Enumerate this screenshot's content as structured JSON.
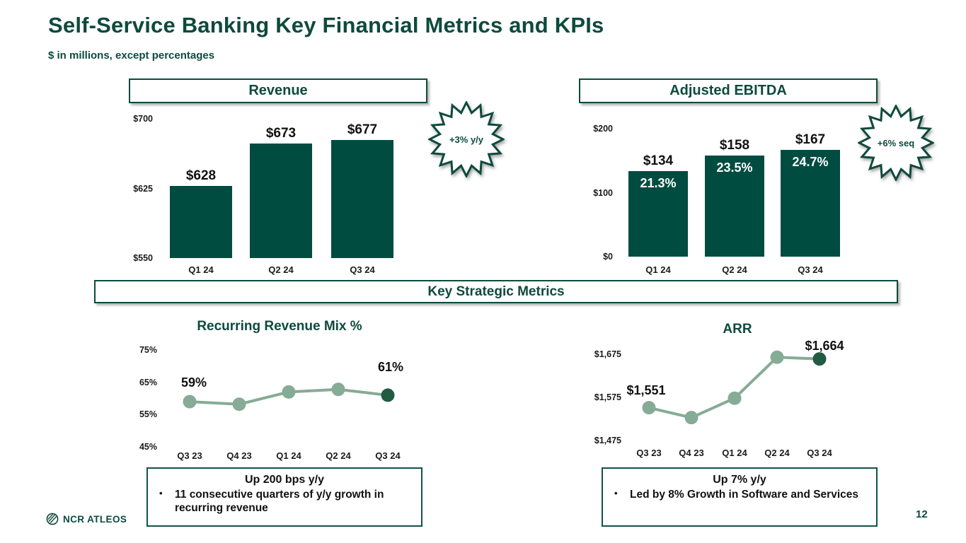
{
  "slide": {
    "title": "Self-Service Banking Key Financial Metrics and KPIs",
    "subtitle": "$ in millions, except percentages",
    "section_header": "Key Strategic Metrics",
    "page_number": "12",
    "logo_text": "NCR ATLEOS"
  },
  "colors": {
    "dark_green": "#0e4a3c",
    "bar_fill": "#014c40",
    "line_sage": "#86ab96",
    "last_marker": "#215c42",
    "text_black": "#111111",
    "white": "#ffffff"
  },
  "callouts": {
    "recurring": {
      "heading": "Up 200 bps y/y",
      "bullet": "11 consecutive quarters of y/y growth in recurring revenue"
    },
    "arr": {
      "heading": "Up 7% y/y",
      "bullet": "Led by 8% Growth in Software and Services"
    }
  },
  "chart_data": [
    {
      "id": "revenue",
      "type": "bar",
      "title": "Revenue",
      "badge": "+3% y/y",
      "categories": [
        "Q1 24",
        "Q2 24",
        "Q3 24"
      ],
      "values": [
        628,
        673,
        677
      ],
      "bar_labels": [
        "$628",
        "$673",
        "$677"
      ],
      "y_ticks": [
        "$700",
        "$625",
        "$550"
      ],
      "y_tick_values": [
        700,
        625,
        550
      ],
      "ylim": [
        550,
        700
      ],
      "grid": false,
      "ylabel": "",
      "xlabel": ""
    },
    {
      "id": "adjusted_ebitda",
      "type": "bar",
      "title": "Adjusted EBITDA",
      "badge": "+6% seq",
      "categories": [
        "Q1 24",
        "Q2 24",
        "Q3 24"
      ],
      "values": [
        134,
        158,
        167
      ],
      "bar_labels": [
        "$134",
        "$158",
        "$167"
      ],
      "inner_labels": [
        "21.3%",
        "23.5%",
        "24.7%"
      ],
      "y_ticks": [
        "$200",
        "$100",
        "$0"
      ],
      "y_tick_values": [
        200,
        100,
        0
      ],
      "ylim": [
        0,
        200
      ],
      "grid": false,
      "ylabel": "",
      "xlabel": ""
    },
    {
      "id": "recurring_revenue_mix",
      "type": "line",
      "title": "Recurring Revenue Mix %",
      "categories": [
        "Q3 23",
        "Q4 23",
        "Q1 24",
        "Q2 24",
        "Q3 24"
      ],
      "values": [
        59,
        58.2,
        62,
        62.8,
        61
      ],
      "point_labels": [
        "59%",
        null,
        null,
        null,
        "61%"
      ],
      "y_ticks": [
        "75%",
        "65%",
        "55%",
        "45%"
      ],
      "y_tick_values": [
        75,
        65,
        55,
        45
      ],
      "ylim": [
        45,
        77
      ],
      "grid": false,
      "ylabel": "",
      "xlabel": ""
    },
    {
      "id": "arr",
      "type": "line",
      "title": "ARR",
      "categories": [
        "Q3 23",
        "Q4 23",
        "Q1 24",
        "Q2 24",
        "Q3 24"
      ],
      "values": [
        1551,
        1528,
        1573,
        1668,
        1664
      ],
      "point_labels": [
        "$1,551",
        null,
        null,
        null,
        "$1,664"
      ],
      "y_ticks": [
        "$1,675",
        "$1,575",
        "$1,475"
      ],
      "y_tick_values": [
        1675,
        1575,
        1475
      ],
      "ylim": [
        1475,
        1690
      ],
      "grid": false,
      "ylabel": "",
      "xlabel": ""
    }
  ]
}
